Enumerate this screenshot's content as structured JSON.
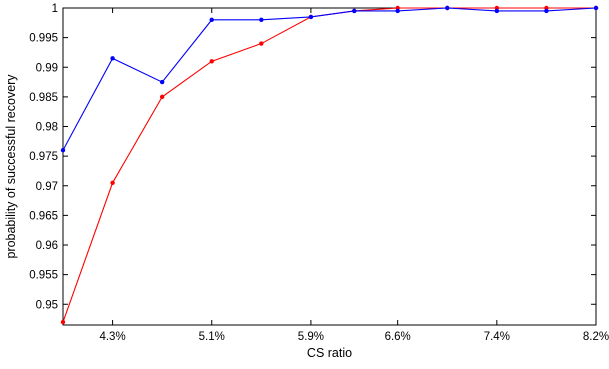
{
  "chart_data": {
    "type": "line",
    "title": "",
    "xlabel": "CS ratio",
    "ylabel": "probability of successful recovery",
    "x_tick_labels": [
      "4.3%",
      "5.1%",
      "5.9%",
      "6.6%",
      "7.4%",
      "8.2%"
    ],
    "y_tick_labels": [
      "0.95",
      "0.955",
      "0.96",
      "0.965",
      "0.97",
      "0.975",
      "0.98",
      "0.985",
      "0.99",
      "0.995",
      "1"
    ],
    "ylim": [
      0.9465,
      1
    ],
    "xlim": [
      3.9,
      8.2
    ],
    "grid": false,
    "legend": false,
    "x": [
      3.9,
      4.3,
      4.7,
      5.1,
      5.5,
      5.9,
      6.25,
      6.6,
      7.0,
      7.4,
      7.8,
      8.2
    ],
    "series": [
      {
        "color": "#ff0000",
        "values": [
          0.947,
          0.9705,
          0.985,
          0.991,
          0.994,
          0.9985,
          0.9995,
          1.0,
          1.0,
          1.0,
          1.0,
          1.0
        ]
      },
      {
        "color": "#0000ff",
        "values": [
          0.976,
          0.9915,
          0.9875,
          0.998,
          0.998,
          0.9985,
          0.9995,
          0.9995,
          1.0,
          0.9995,
          0.9995,
          1.0
        ]
      }
    ]
  }
}
